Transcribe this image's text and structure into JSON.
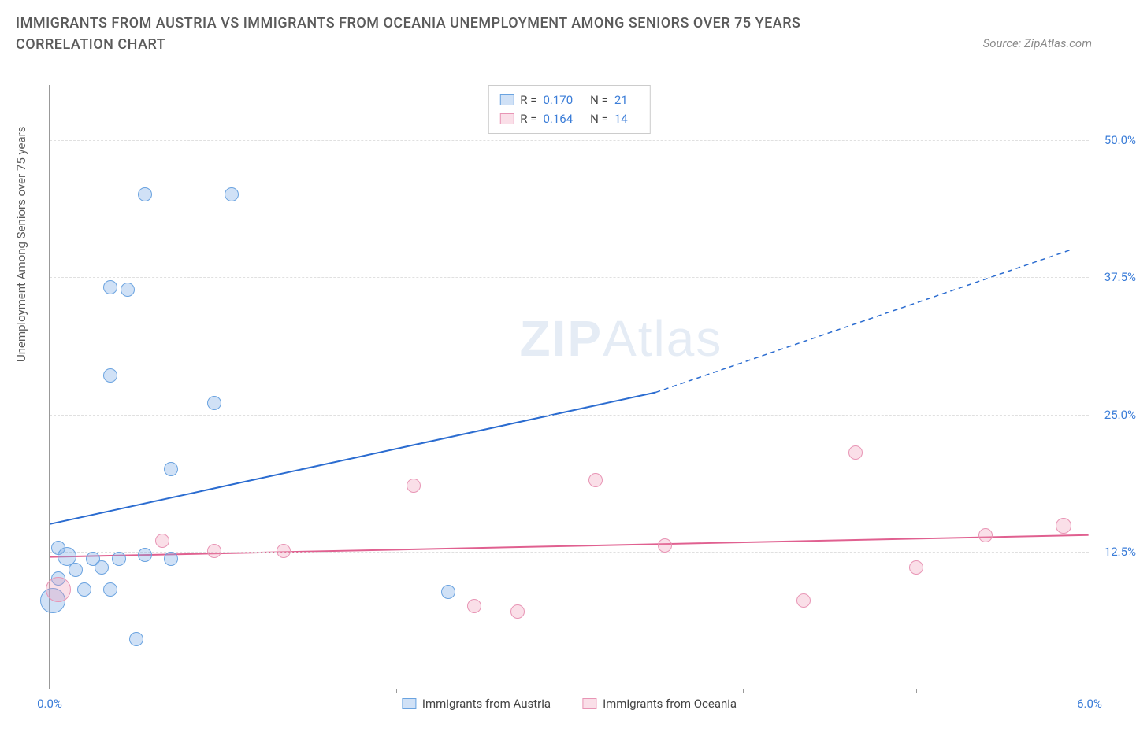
{
  "title": "IMMIGRANTS FROM AUSTRIA VS IMMIGRANTS FROM OCEANIA UNEMPLOYMENT AMONG SENIORS OVER 75 YEARS CORRELATION CHART",
  "source": "Source: ZipAtlas.com",
  "y_axis_label": "Unemployment Among Seniors over 75 years",
  "watermark_bold": "ZIP",
  "watermark_light": "Atlas",
  "chart": {
    "type": "scatter",
    "xlim": [
      0.0,
      6.0
    ],
    "ylim": [
      0.0,
      55.0
    ],
    "x_ticks": [
      0.0,
      2.0,
      3.0,
      4.0,
      5.0,
      6.0
    ],
    "x_tick_labels": {
      "0": "0.0%",
      "6": "6.0%"
    },
    "y_ticks": [
      12.5,
      25.0,
      37.5,
      50.0
    ],
    "y_tick_labels": [
      "12.5%",
      "25.0%",
      "37.5%",
      "50.0%"
    ],
    "grid_color": "#e0e0e0",
    "background_color": "#ffffff",
    "axis_color": "#999999",
    "series": [
      {
        "name": "Immigrants from Austria",
        "key": "austria",
        "fill": "rgba(120,170,230,0.35)",
        "stroke": "#6aa3e0",
        "r_value": "0.170",
        "n_value": "21",
        "trend": {
          "x1": 0.0,
          "y1": 15.0,
          "x2_solid": 3.5,
          "y2_solid": 27.0,
          "x2_dash": 5.9,
          "y2_dash": 40.0,
          "color": "#2b6cd0",
          "width": 2
        },
        "points": [
          {
            "x": 0.55,
            "y": 45.0,
            "r": 9
          },
          {
            "x": 1.05,
            "y": 45.0,
            "r": 9
          },
          {
            "x": 0.35,
            "y": 36.5,
            "r": 9
          },
          {
            "x": 0.45,
            "y": 36.3,
            "r": 9
          },
          {
            "x": 0.35,
            "y": 28.5,
            "r": 9
          },
          {
            "x": 0.95,
            "y": 26.0,
            "r": 9
          },
          {
            "x": 0.7,
            "y": 20.0,
            "r": 9
          },
          {
            "x": 0.05,
            "y": 12.8,
            "r": 9
          },
          {
            "x": 0.1,
            "y": 12.0,
            "r": 12
          },
          {
            "x": 0.25,
            "y": 11.8,
            "r": 9
          },
          {
            "x": 0.4,
            "y": 11.8,
            "r": 9
          },
          {
            "x": 0.55,
            "y": 12.2,
            "r": 9
          },
          {
            "x": 0.05,
            "y": 10.0,
            "r": 9
          },
          {
            "x": 0.15,
            "y": 10.8,
            "r": 9
          },
          {
            "x": 0.3,
            "y": 11.0,
            "r": 9
          },
          {
            "x": 0.02,
            "y": 8.0,
            "r": 16
          },
          {
            "x": 0.2,
            "y": 9.0,
            "r": 9
          },
          {
            "x": 0.35,
            "y": 9.0,
            "r": 9
          },
          {
            "x": 0.5,
            "y": 4.5,
            "r": 9
          },
          {
            "x": 2.3,
            "y": 8.8,
            "r": 9
          },
          {
            "x": 0.7,
            "y": 11.8,
            "r": 9
          }
        ]
      },
      {
        "name": "Immigrants from Oceania",
        "key": "oceania",
        "fill": "rgba(240,150,180,0.3)",
        "stroke": "#e895b5",
        "r_value": "0.164",
        "n_value": "14",
        "trend": {
          "x1": 0.0,
          "y1": 12.0,
          "x2_solid": 6.0,
          "y2_solid": 14.0,
          "x2_dash": 6.0,
          "y2_dash": 14.0,
          "color": "#e06090",
          "width": 2
        },
        "points": [
          {
            "x": 0.05,
            "y": 9.0,
            "r": 16
          },
          {
            "x": 0.65,
            "y": 13.5,
            "r": 9
          },
          {
            "x": 0.95,
            "y": 12.5,
            "r": 9
          },
          {
            "x": 1.35,
            "y": 12.5,
            "r": 9
          },
          {
            "x": 2.1,
            "y": 18.5,
            "r": 9
          },
          {
            "x": 2.45,
            "y": 7.5,
            "r": 9
          },
          {
            "x": 2.7,
            "y": 7.0,
            "r": 9
          },
          {
            "x": 3.15,
            "y": 19.0,
            "r": 9
          },
          {
            "x": 3.55,
            "y": 13.0,
            "r": 9
          },
          {
            "x": 4.35,
            "y": 8.0,
            "r": 9
          },
          {
            "x": 4.65,
            "y": 21.5,
            "r": 9
          },
          {
            "x": 5.0,
            "y": 11.0,
            "r": 9
          },
          {
            "x": 5.4,
            "y": 14.0,
            "r": 9
          },
          {
            "x": 5.85,
            "y": 14.8,
            "r": 10
          }
        ]
      }
    ]
  },
  "legend_top": {
    "r_label": "R =",
    "n_label": "N ="
  },
  "legend_bottom": [
    {
      "swatch": "blue",
      "label": "Immigrants from Austria"
    },
    {
      "swatch": "pink",
      "label": "Immigrants from Oceania"
    }
  ]
}
